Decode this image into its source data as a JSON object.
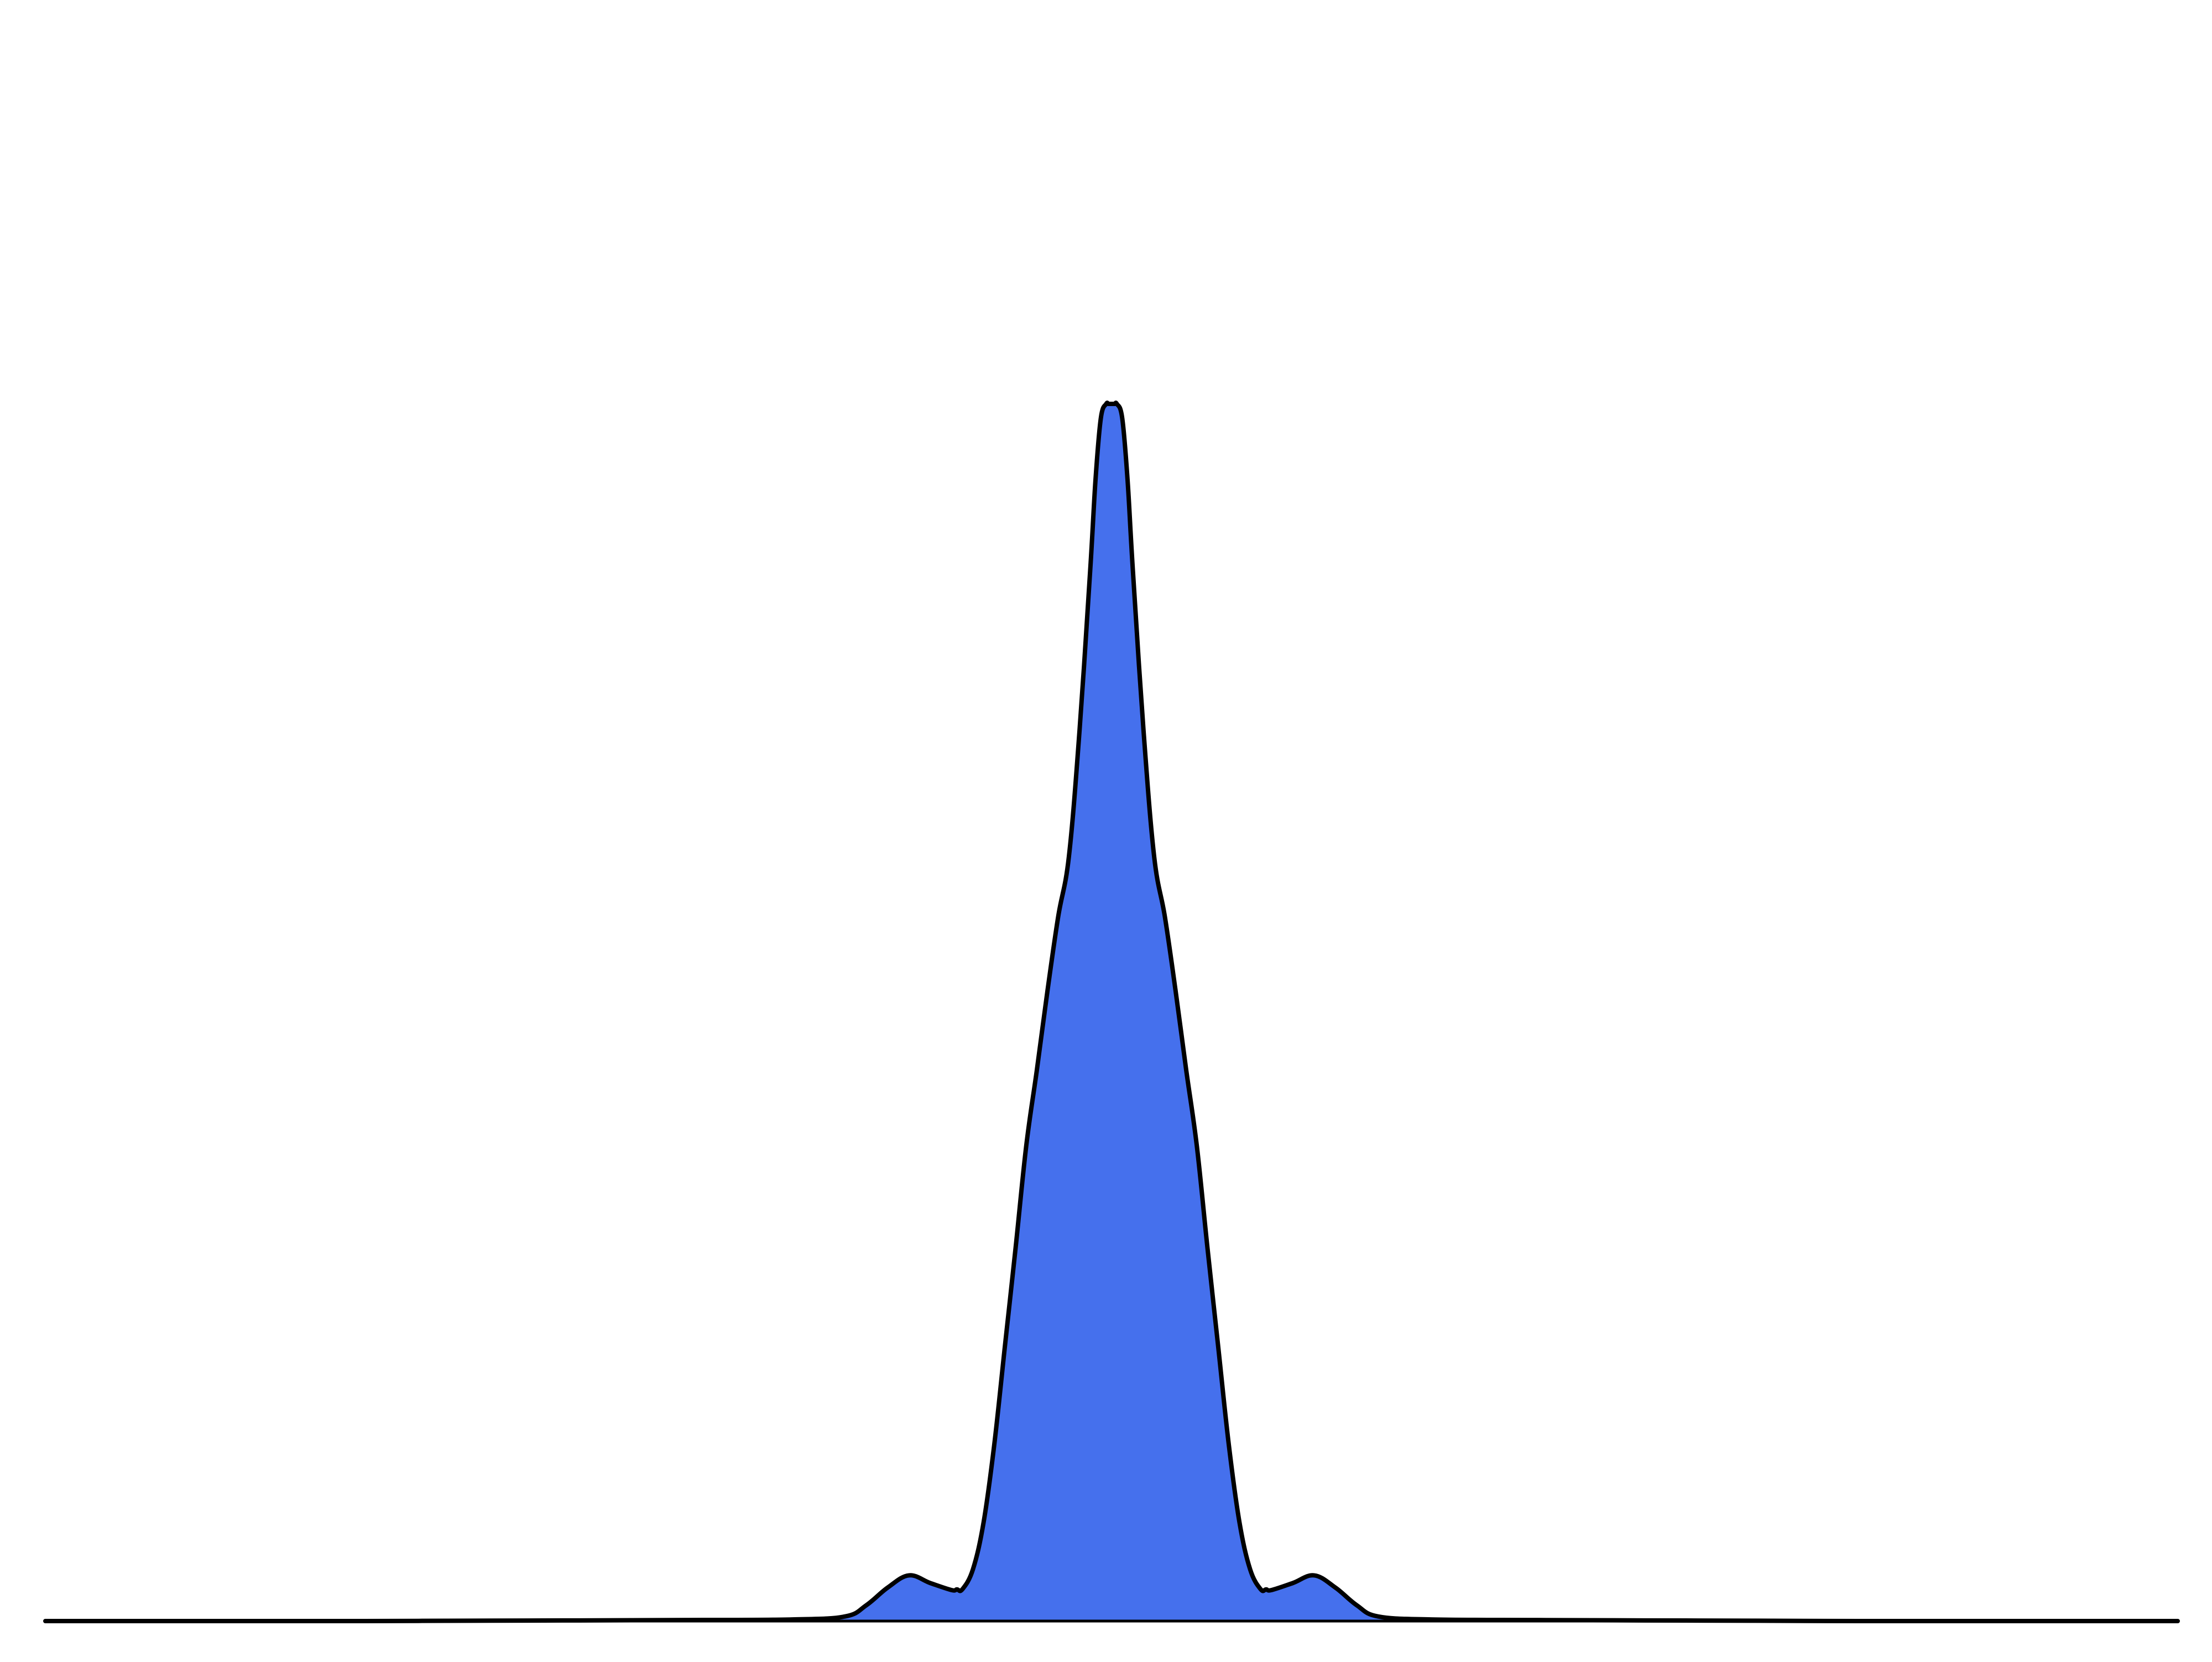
{
  "chart_data": {
    "type": "area",
    "title": "",
    "xlabel": "",
    "ylabel": "",
    "grid": false,
    "legend": "none",
    "xlim": [
      -1,
      1
    ],
    "ylim": [
      0,
      1.3
    ],
    "series": [
      {
        "x": [
          -1.0,
          -0.9,
          -0.8,
          -0.7,
          -0.6,
          -0.5,
          -0.4,
          -0.3,
          -0.25,
          -0.23,
          -0.21,
          -0.19,
          -0.17,
          -0.15,
          -0.145,
          -0.14,
          -0.13,
          -0.12,
          -0.11,
          -0.1,
          -0.09,
          -0.08,
          -0.07,
          -0.06,
          -0.05,
          -0.04,
          -0.03,
          -0.02,
          -0.015,
          -0.01,
          -0.005,
          -0.003,
          -0.001,
          0.0,
          0.001,
          0.003,
          0.005,
          0.01,
          0.015,
          0.02,
          0.03,
          0.04,
          0.05,
          0.06,
          0.07,
          0.08,
          0.09,
          0.1,
          0.11,
          0.12,
          0.13,
          0.14,
          0.145,
          0.15,
          0.17,
          0.19,
          0.21,
          0.23,
          0.25,
          0.3,
          0.4,
          0.5,
          0.6,
          0.7,
          0.8,
          0.9,
          1.0
        ],
        "y": [
          0.0,
          0.0,
          0.0,
          0.0,
          0.0004,
          0.0007,
          0.0011,
          0.0017,
          0.0049,
          0.0169,
          0.0357,
          0.0488,
          0.0406,
          0.0331,
          0.0338,
          0.0338,
          0.0552,
          0.1054,
          0.1883,
          0.2936,
          0.3983,
          0.5075,
          0.5888,
          0.6738,
          0.7525,
          0.8163,
          0.9513,
          1.1225,
          1.2194,
          1.285,
          1.3,
          1.3,
          1.3,
          1.3,
          1.3,
          1.3,
          1.3,
          1.285,
          1.2194,
          1.1225,
          0.9513,
          0.8163,
          0.7525,
          0.6738,
          0.5888,
          0.5075,
          0.3983,
          0.2936,
          0.1883,
          0.1054,
          0.0552,
          0.0338,
          0.0338,
          0.0331,
          0.0406,
          0.0488,
          0.0357,
          0.0169,
          0.0049,
          0.0017,
          0.0011,
          0.0007,
          0.0004,
          0.0,
          0.0,
          0.0,
          0.0
        ]
      }
    ]
  },
  "colors": {
    "fill": "#4570ED",
    "line": "#000000",
    "baseline": "#000000",
    "background": "#ffffff"
  }
}
